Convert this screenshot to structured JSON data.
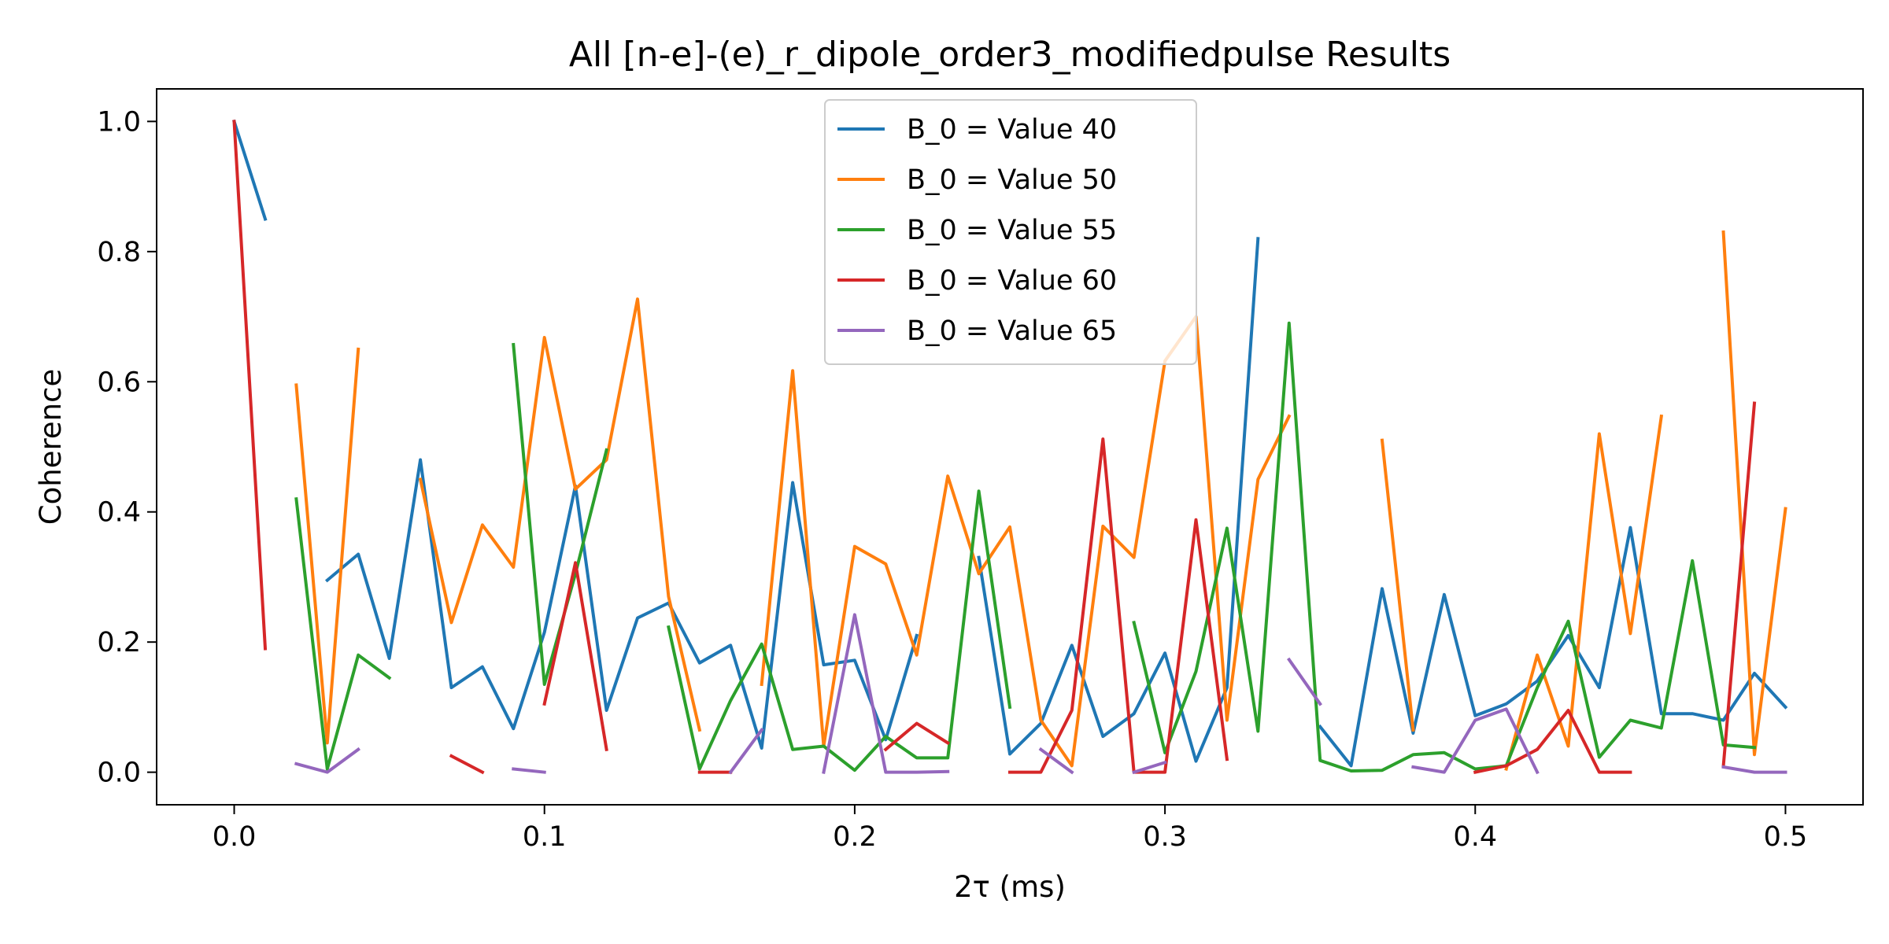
{
  "chart_data": {
    "type": "line",
    "title": "All [n-e]-(e)_r_dipole_order3_modifiedpulse Results",
    "xlabel": "2τ (ms)",
    "ylabel": "Coherence",
    "xlim": [
      -0.025,
      0.525
    ],
    "ylim": [
      -0.05,
      1.05
    ],
    "xticks": [
      0.0,
      0.1,
      0.2,
      0.3,
      0.4,
      0.5
    ],
    "xtick_labels": [
      "0.0",
      "0.1",
      "0.2",
      "0.3",
      "0.4",
      "0.5"
    ],
    "yticks": [
      0.0,
      0.2,
      0.4,
      0.6,
      0.8,
      1.0
    ],
    "ytick_labels": [
      "0.0",
      "0.2",
      "0.4",
      "0.6",
      "0.8",
      "1.0"
    ],
    "grid": false,
    "legend_position": "top-center",
    "x": [
      0.0,
      0.01,
      0.02,
      0.03,
      0.04,
      0.05,
      0.06,
      0.07,
      0.08,
      0.09,
      0.1,
      0.11,
      0.12,
      0.13,
      0.14,
      0.15,
      0.16,
      0.17,
      0.18,
      0.19,
      0.2,
      0.21,
      0.22,
      0.23,
      0.24,
      0.25,
      0.26,
      0.27,
      0.28,
      0.29,
      0.3,
      0.31,
      0.32,
      0.33,
      0.34,
      0.35,
      0.36,
      0.37,
      0.38,
      0.39,
      0.4,
      0.41,
      0.42,
      0.43,
      0.44,
      0.45,
      0.46,
      0.47,
      0.48,
      0.49,
      0.5
    ],
    "series": [
      {
        "name": "B_0 = Value 40",
        "color": "#1f77b4",
        "values": [
          1.0,
          0.85,
          null,
          0.295,
          0.335,
          0.175,
          0.48,
          0.13,
          0.162,
          0.067,
          0.215,
          0.44,
          0.095,
          0.237,
          0.26,
          0.168,
          0.195,
          0.037,
          0.445,
          0.165,
          0.172,
          0.05,
          0.21,
          null,
          0.33,
          0.028,
          0.075,
          0.195,
          0.055,
          0.09,
          0.183,
          0.017,
          0.13,
          0.82,
          null,
          0.07,
          0.01,
          0.282,
          0.06,
          0.273,
          0.087,
          0.105,
          0.14,
          0.21,
          0.13,
          0.376,
          0.09,
          0.09,
          0.08,
          0.152,
          0.1
        ]
      },
      {
        "name": "B_0 = Value 50",
        "color": "#ff7f0e",
        "values": [
          null,
          null,
          0.595,
          0.045,
          0.65,
          null,
          0.45,
          0.23,
          0.38,
          0.315,
          0.668,
          0.435,
          0.48,
          0.727,
          0.27,
          0.065,
          null,
          0.135,
          0.617,
          0.04,
          0.347,
          0.32,
          0.18,
          0.455,
          0.305,
          0.377,
          0.08,
          0.01,
          0.378,
          0.33,
          0.632,
          0.7,
          0.08,
          0.45,
          0.547,
          null,
          null,
          0.51,
          0.065,
          null,
          null,
          0.005,
          0.18,
          0.04,
          0.52,
          0.213,
          0.547,
          null,
          0.83,
          0.027,
          0.405
        ]
      },
      {
        "name": "B_0 = Value 55",
        "color": "#2ca02c",
        "values": [
          null,
          null,
          0.42,
          0.005,
          0.18,
          0.145,
          null,
          null,
          null,
          0.657,
          0.135,
          0.305,
          0.495,
          null,
          0.223,
          0.005,
          0.11,
          0.197,
          0.035,
          0.04,
          0.003,
          0.055,
          0.022,
          0.022,
          0.432,
          0.1,
          null,
          null,
          null,
          0.23,
          0.03,
          0.155,
          0.375,
          0.063,
          0.69,
          0.018,
          0.002,
          0.003,
          0.027,
          0.03,
          0.005,
          0.01,
          0.13,
          0.232,
          0.023,
          0.08,
          0.068,
          0.325,
          0.042,
          0.038,
          null
        ]
      },
      {
        "name": "B_0 = Value 60",
        "color": "#d62728",
        "values": [
          1.0,
          0.19,
          null,
          null,
          null,
          null,
          null,
          0.025,
          0.0,
          null,
          0.105,
          0.322,
          0.035,
          null,
          null,
          0.0,
          0.0,
          null,
          null,
          null,
          null,
          0.035,
          0.075,
          0.045,
          null,
          0.0,
          0.0,
          0.095,
          0.512,
          0.0,
          0.0,
          0.388,
          0.02,
          null,
          null,
          null,
          null,
          null,
          null,
          null,
          0.0,
          0.01,
          0.035,
          0.095,
          0.0,
          0.0,
          null,
          null,
          0.01,
          0.567,
          null
        ]
      },
      {
        "name": "B_0 = Value 65",
        "color": "#9467bd",
        "values": [
          null,
          null,
          0.013,
          0.0,
          0.035,
          null,
          null,
          null,
          null,
          0.005,
          0.0,
          null,
          null,
          null,
          null,
          null,
          0.0,
          0.065,
          null,
          0.0,
          0.242,
          0.0,
          0.0,
          0.001,
          null,
          null,
          0.035,
          0.0,
          null,
          0.0,
          0.015,
          null,
          null,
          null,
          0.173,
          0.105,
          null,
          null,
          0.008,
          0.0,
          0.08,
          0.097,
          0.0,
          null,
          null,
          null,
          null,
          null,
          0.008,
          0.0,
          0.0
        ]
      }
    ]
  }
}
